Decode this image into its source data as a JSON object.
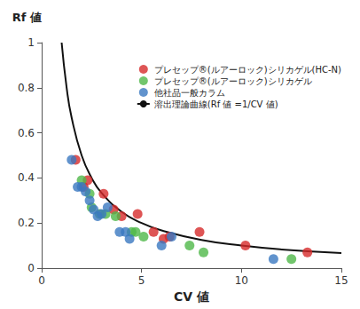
{
  "chart_data": {
    "type": "scatter",
    "x_label": "CV 値",
    "y_label": "Rf 値",
    "xlim": [
      0,
      15
    ],
    "xticks": [
      0,
      5,
      10,
      15
    ],
    "ylim": [
      0,
      1
    ],
    "yticks": [
      0,
      0.2,
      0.4,
      0.6,
      0.8,
      1
    ],
    "grid": false,
    "legend": "upper right",
    "series": [
      {
        "name": "プレセップ®(ルアーロック)シリカゲル(HC-N)",
        "color": "#d62a2a",
        "type": "scatter",
        "marker": "circle",
        "x": [
          1.7,
          2.1,
          2.3,
          3.1,
          3.6,
          4.0,
          4.8,
          5.6,
          6.1,
          6.4,
          7.9,
          10.2,
          13.3
        ],
        "values": [
          0.48,
          0.36,
          0.39,
          0.33,
          0.26,
          0.23,
          0.24,
          0.16,
          0.13,
          0.14,
          0.16,
          0.1,
          0.07
        ]
      },
      {
        "name": "プレセップ®(ルアーロック)シリカゲル",
        "color": "#4fb848",
        "type": "scatter",
        "marker": "circle",
        "x": [
          2.0,
          2.4,
          2.5,
          2.9,
          3.2,
          3.7,
          4.5,
          4.7,
          5.1,
          7.4,
          8.1,
          12.5
        ],
        "values": [
          0.39,
          0.33,
          0.27,
          0.24,
          0.24,
          0.23,
          0.16,
          0.16,
          0.14,
          0.1,
          0.07,
          0.04
        ]
      },
      {
        "name": "他社品一般カラム",
        "color": "#3a78c0",
        "type": "scatter",
        "marker": "circle",
        "x": [
          1.5,
          1.8,
          2.0,
          2.2,
          2.4,
          2.6,
          2.8,
          3.0,
          3.3,
          3.9,
          4.2,
          4.4,
          6.0,
          6.5,
          11.6
        ],
        "values": [
          0.48,
          0.36,
          0.36,
          0.34,
          0.3,
          0.26,
          0.23,
          0.24,
          0.27,
          0.16,
          0.16,
          0.13,
          0.1,
          0.14,
          0.04
        ]
      },
      {
        "name": "溶出理論曲線(Rf 値 =1/CV 値)",
        "color": "#111111",
        "type": "line",
        "marker": "none",
        "line_style": "solid",
        "x": [
          1,
          1.25,
          1.5,
          2,
          2.5,
          3,
          4,
          5,
          6,
          8,
          10,
          12,
          15
        ],
        "values": [
          1,
          0.8,
          0.667,
          0.5,
          0.4,
          0.333,
          0.25,
          0.2,
          0.167,
          0.125,
          0.1,
          0.083,
          0.067
        ]
      }
    ]
  }
}
